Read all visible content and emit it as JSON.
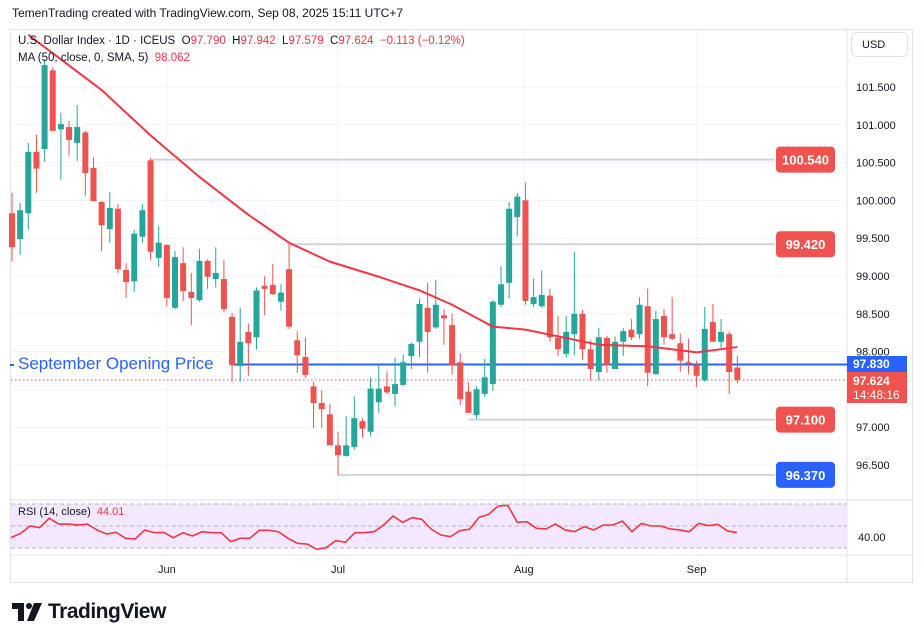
{
  "credit": "TemenTrading created with TradingView.com, Sep 08, 2025 15:11 UTC+7",
  "legend": {
    "symbol": "U.S. Dollar Index · 1D · ICEUS",
    "o_label": "O",
    "o": "97.790",
    "h_label": "H",
    "h": "97.942",
    "l_label": "L",
    "l": "97.579",
    "c_label": "C",
    "c": "97.624",
    "change": "−0.113 (−0.12%)",
    "ma_label": "MA (50, close, 0, SMA, 5)",
    "ma_value": "98.062"
  },
  "currency": "USD",
  "logo": "TradingView",
  "annotation": "September Opening Price",
  "colors": {
    "up": "#26a69a",
    "down": "#ef5350",
    "ma": "#f23645",
    "blue": "#2962ff",
    "level": "#d1d4dc"
  },
  "chart_data": {
    "type": "candlestick",
    "price_axis": [
      "101.500",
      "101.000",
      "100.500",
      "100.000",
      "99.500",
      "99.000",
      "98.500",
      "98.000",
      "97.000",
      "96.500"
    ],
    "time_axis": [
      "Jun",
      "Jul",
      "Aug",
      "Sep"
    ],
    "time_axis_index": [
      19.0,
      40.0,
      62.8,
      84.0
    ],
    "candles": [
      [
        99.83,
        100.1,
        99.19,
        99.38
      ],
      [
        99.49,
        99.97,
        99.28,
        99.87
      ],
      [
        99.83,
        100.76,
        99.61,
        100.64
      ],
      [
        100.64,
        100.87,
        100.1,
        100.42
      ],
      [
        100.68,
        101.86,
        100.51,
        101.79
      ],
      [
        101.72,
        101.76,
        100.91,
        100.92
      ],
      [
        100.94,
        101.16,
        100.27,
        101.01
      ],
      [
        100.97,
        101.05,
        100.59,
        100.8
      ],
      [
        100.76,
        101.26,
        100.52,
        100.97
      ],
      [
        100.9,
        100.92,
        100.06,
        100.36
      ],
      [
        100.43,
        100.57,
        99.99,
        99.99
      ],
      [
        99.98,
        99.99,
        99.33,
        99.67
      ],
      [
        99.62,
        100.11,
        99.44,
        99.9
      ],
      [
        99.89,
        99.95,
        99.04,
        99.09
      ],
      [
        99.08,
        99.17,
        98.71,
        98.92
      ],
      [
        98.93,
        99.61,
        98.79,
        99.56
      ],
      [
        99.52,
        99.95,
        99.44,
        99.87
      ],
      [
        100.53,
        100.56,
        99.21,
        99.32
      ],
      [
        99.24,
        99.66,
        99.12,
        99.44
      ],
      [
        99.41,
        99.42,
        98.6,
        98.71
      ],
      [
        98.58,
        99.33,
        98.56,
        99.25
      ],
      [
        99.17,
        99.38,
        98.67,
        98.8
      ],
      [
        98.79,
        99.04,
        98.35,
        98.71
      ],
      [
        98.68,
        99.36,
        98.66,
        99.2
      ],
      [
        99.2,
        99.22,
        98.83,
        98.99
      ],
      [
        98.96,
        99.38,
        98.85,
        99.04
      ],
      [
        98.96,
        99.21,
        98.52,
        98.56
      ],
      [
        98.46,
        98.51,
        97.6,
        97.82
      ],
      [
        97.81,
        98.58,
        97.6,
        98.13
      ],
      [
        98.26,
        98.37,
        97.68,
        98.11
      ],
      [
        98.19,
        98.85,
        98.03,
        98.81
      ],
      [
        98.87,
        99.0,
        98.48,
        98.83
      ],
      [
        98.88,
        99.16,
        98.75,
        98.76
      ],
      [
        98.66,
        98.89,
        98.54,
        98.78
      ],
      [
        99.09,
        99.44,
        98.3,
        98.33
      ],
      [
        98.15,
        98.27,
        97.72,
        97.95
      ],
      [
        97.93,
        98.19,
        97.65,
        97.69
      ],
      [
        97.54,
        97.6,
        96.99,
        97.32
      ],
      [
        97.32,
        97.49,
        96.99,
        97.24
      ],
      [
        97.17,
        97.31,
        96.76,
        96.76
      ],
      [
        96.76,
        96.94,
        96.37,
        96.63
      ],
      [
        96.62,
        97.15,
        96.61,
        96.76
      ],
      [
        96.74,
        97.41,
        96.7,
        97.12
      ],
      [
        97.08,
        97.12,
        96.86,
        96.98
      ],
      [
        96.94,
        97.66,
        96.88,
        97.51
      ],
      [
        97.33,
        97.83,
        97.19,
        97.51
      ],
      [
        97.54,
        97.74,
        97.44,
        97.46
      ],
      [
        97.44,
        97.92,
        97.27,
        97.57
      ],
      [
        97.56,
        97.96,
        97.54,
        97.86
      ],
      [
        97.94,
        98.12,
        97.77,
        98.1
      ],
      [
        98.13,
        98.7,
        97.93,
        98.63
      ],
      [
        98.58,
        98.91,
        97.72,
        98.26
      ],
      [
        98.32,
        98.95,
        98.3,
        98.62
      ],
      [
        98.48,
        98.56,
        98.09,
        98.44
      ],
      [
        98.35,
        98.5,
        97.7,
        97.82
      ],
      [
        97.86,
        97.98,
        97.29,
        97.37
      ],
      [
        97.47,
        97.6,
        97.19,
        97.19
      ],
      [
        97.16,
        97.54,
        97.11,
        97.5
      ],
      [
        97.44,
        97.9,
        97.4,
        97.66
      ],
      [
        97.57,
        98.68,
        97.48,
        98.66
      ],
      [
        98.62,
        99.13,
        98.59,
        98.89
      ],
      [
        98.91,
        99.98,
        98.71,
        99.89
      ],
      [
        99.78,
        100.1,
        99.52,
        100.05
      ],
      [
        100.0,
        100.24,
        98.62,
        98.67
      ],
      [
        98.63,
        98.97,
        98.59,
        98.72
      ],
      [
        98.6,
        99.07,
        98.58,
        98.75
      ],
      [
        98.74,
        98.83,
        98.13,
        98.19
      ],
      [
        98.18,
        98.47,
        97.94,
        98.03
      ],
      [
        97.97,
        98.47,
        97.92,
        98.26
      ],
      [
        98.23,
        99.32,
        97.95,
        98.5
      ],
      [
        98.5,
        98.55,
        97.89,
        98.03
      ],
      [
        98.03,
        98.15,
        97.62,
        97.77
      ],
      [
        97.73,
        98.31,
        97.62,
        98.19
      ],
      [
        98.18,
        98.21,
        97.72,
        97.82
      ],
      [
        97.77,
        98.2,
        97.77,
        98.13
      ],
      [
        98.13,
        98.31,
        97.94,
        98.27
      ],
      [
        98.29,
        98.43,
        98.15,
        98.19
      ],
      [
        98.23,
        98.72,
        98.17,
        98.62
      ],
      [
        98.6,
        98.83,
        97.54,
        97.72
      ],
      [
        97.7,
        98.54,
        97.7,
        98.43
      ],
      [
        98.47,
        98.56,
        98.09,
        98.19
      ],
      [
        98.23,
        98.72,
        98.15,
        98.17
      ],
      [
        98.11,
        98.24,
        97.73,
        97.88
      ],
      [
        97.86,
        98.17,
        97.7,
        97.84
      ],
      [
        97.82,
        97.88,
        97.53,
        97.68
      ],
      [
        97.62,
        98.59,
        97.6,
        98.3
      ],
      [
        98.39,
        98.63,
        98.13,
        98.13
      ],
      [
        98.13,
        98.43,
        98.05,
        98.26
      ],
      [
        98.23,
        98.26,
        97.44,
        97.73
      ],
      [
        97.79,
        97.942,
        97.579,
        97.624
      ]
    ],
    "ma_series": [
      [
        2,
        102.19
      ],
      [
        11,
        101.46
      ],
      [
        17,
        100.86
      ],
      [
        23,
        100.31
      ],
      [
        29,
        99.81
      ],
      [
        34,
        99.44
      ],
      [
        39,
        99.19
      ],
      [
        45,
        98.99
      ],
      [
        50,
        98.81
      ],
      [
        54,
        98.62
      ],
      [
        59,
        98.33
      ],
      [
        63,
        98.29
      ],
      [
        72,
        98.09
      ],
      [
        78,
        98.07
      ],
      [
        84,
        97.99
      ],
      [
        89,
        98.06
      ]
    ],
    "levels": [
      {
        "label": "100.540",
        "value": 100.54,
        "from_index": 17,
        "style": "red"
      },
      {
        "label": "99.420",
        "value": 99.42,
        "from_index": 34,
        "style": "red"
      },
      {
        "label": "97.100",
        "value": 97.1,
        "from_index": 56,
        "style": "red"
      },
      {
        "label": "96.370",
        "value": 96.37,
        "from_index": 40,
        "style": "blue"
      }
    ],
    "sep_open": {
      "value": 97.83,
      "label": "97.830",
      "from_index": 27
    },
    "last": {
      "value": 97.624,
      "label": "97.624",
      "countdown": "14:48:16"
    },
    "rsi": {
      "label": "RSI (14, close)",
      "value": "44.01",
      "axis_label": "40.00",
      "bands": [
        70,
        50,
        30
      ],
      "values": [
        39.4,
        43.3,
        50.0,
        48.5,
        57.0,
        51.8,
        51.8,
        50.9,
        51.8,
        46.4,
        42.7,
        44.2,
        38.8,
        38.2,
        46.4,
        43.9,
        44.2,
        39.4,
        43.9,
        40.9,
        44.8,
        43.9,
        43.9,
        35.8,
        38.8,
        38.8,
        46.1,
        46.1,
        44.8,
        38.8,
        34.2,
        33.6,
        28.8,
        30.3,
        36.7,
        35.2,
        43.9,
        43.9,
        44.8,
        50.9,
        59.1,
        53.3,
        57.6,
        56.1,
        47.0,
        41.8,
        40.3,
        45.8,
        47.0,
        57.9,
        60.6,
        68.2,
        68.8,
        53.3,
        53.9,
        47.9,
        47.3,
        51.8,
        46.4,
        44.8,
        49.4,
        46.4,
        50.9,
        50.9,
        54.5,
        44.8,
        52.4,
        50.0,
        50.0,
        47.3,
        46.4,
        44.8,
        52.4,
        50.3,
        51.5,
        45.5,
        44.0
      ]
    }
  }
}
